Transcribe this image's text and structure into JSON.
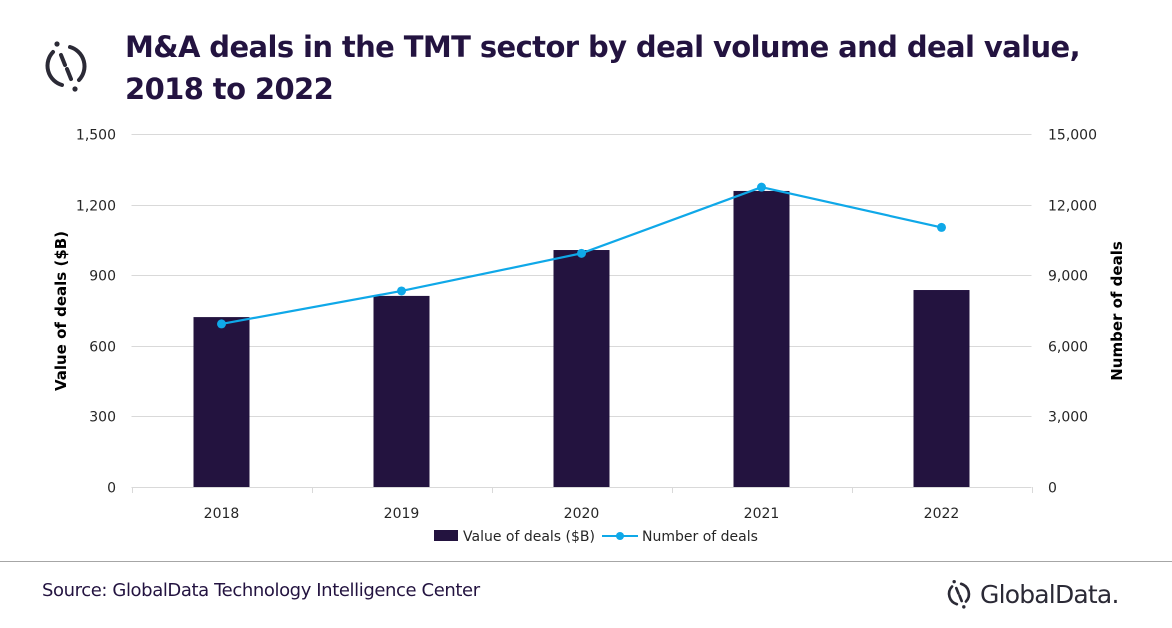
{
  "header": {
    "title": "M&A deals in the TMT sector by deal volume and deal value, 2018 to 2022",
    "logo_icon": "globaldata-logo-icon"
  },
  "footer": {
    "source": "Source: GlobalData Technology Intelligence Center",
    "brand": "GlobalData."
  },
  "colors": {
    "bar": "#23133f",
    "line": "#0fa8e8",
    "grid": "#d9d9d9",
    "title": "#231340"
  },
  "chart_data": {
    "type": "bar+line",
    "title": "M&A deals in the TMT sector by deal volume and deal value, 2018 to 2022",
    "categories": [
      "2018",
      "2019",
      "2020",
      "2021",
      "2022"
    ],
    "series": [
      {
        "name": "Value of deals ($B)",
        "type": "bar",
        "axis": "left",
        "values": [
          722,
          812,
          1007,
          1258,
          837
        ]
      },
      {
        "name": "Number of deals",
        "type": "line",
        "axis": "right",
        "values": [
          6930,
          8330,
          9930,
          12740,
          11030
        ]
      }
    ],
    "ylabel": "Value of deals ($B)",
    "y2label": "Number of deals",
    "xlabel": "",
    "ylim": [
      0,
      1500
    ],
    "y2lim": [
      0,
      15000
    ],
    "yticks": [
      "0",
      "300",
      "600",
      "900",
      "1,200",
      "1,500"
    ],
    "y2ticks": [
      "0",
      "3,000",
      "6,000",
      "9,000",
      "12,000",
      "15,000"
    ],
    "grid": true,
    "legend": "bottom",
    "legend_entries": [
      "Value of deals ($B)",
      "Number of deals"
    ]
  }
}
